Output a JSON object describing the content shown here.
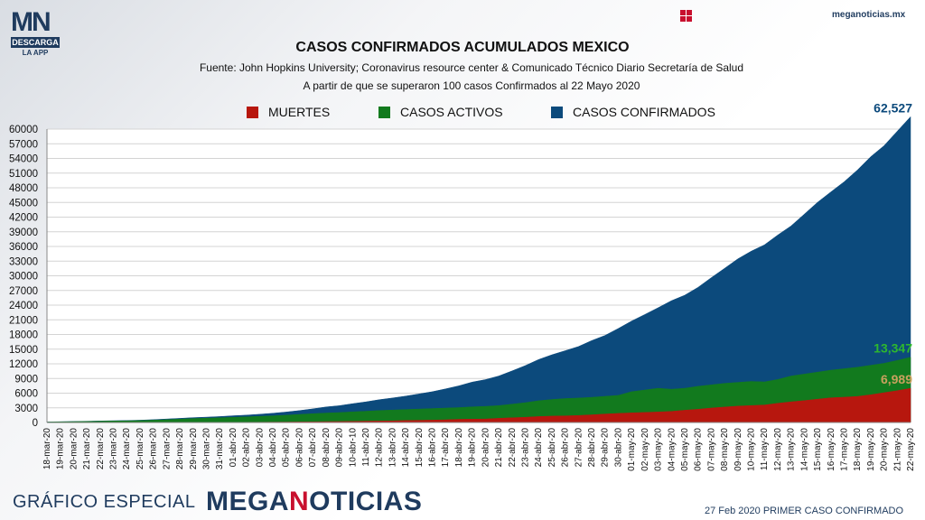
{
  "header": {
    "logo_top": "MN",
    "logo_descarga": "DESCARGA",
    "logo_app": "LA APP",
    "site_url": "meganoticias.mx",
    "icon": "grid-icon"
  },
  "footer": {
    "left": "GRÁFICO ESPECIAL",
    "brand_a": "MEGA",
    "brand_n": "N",
    "brand_b": "OTICIAS",
    "right": "27 Feb 2020 PRIMER CASO CONFIRMADO"
  },
  "chart_data": {
    "type": "area",
    "title": "CASOS CONFIRMADOS ACUMULADOS MEXICO",
    "subtitles": [
      "Fuente: John Hopkins University; Coronavirus resource center & Comunicado Técnico Diario Secretaría de Salud",
      "A partir de que se superaron 100 casos Confirmados al 22 Mayo 2020"
    ],
    "ylim": [
      0,
      60000
    ],
    "yticks": [
      0,
      3000,
      6000,
      9000,
      12000,
      15000,
      18000,
      21000,
      24000,
      27000,
      30000,
      33000,
      36000,
      39000,
      42000,
      45000,
      48000,
      51000,
      54000,
      57000,
      60000
    ],
    "grid": true,
    "legend_position": "top",
    "x": [
      "18-mar-20",
      "19-mar-20",
      "20-mar-20",
      "21-mar-20",
      "22-mar-20",
      "23-mar-20",
      "24-mar-20",
      "25-mar-20",
      "26-mar-20",
      "27-mar-20",
      "28-mar-20",
      "29-mar-20",
      "30-mar-20",
      "31-mar-20",
      "01-abr-20",
      "02-abr-20",
      "03-abr-20",
      "04-abr-20",
      "05-abr-20",
      "06-abr-20",
      "07-abr-20",
      "08-abr-20",
      "09-abr-20",
      "10-abr-10",
      "11-abr-20",
      "12-abr-20",
      "13-abr-20",
      "14-abr-20",
      "15-abr-20",
      "16-abr-20",
      "17-abr-20",
      "18-abr-20",
      "19-abr-20",
      "20-abr-20",
      "21-abr-20",
      "22-abr-20",
      "23-abr-20",
      "24-abr-20",
      "25-abr-20",
      "26-abr-20",
      "27-abr-20",
      "28-abr-20",
      "29-abr-20",
      "30-abr-20",
      "01-may-20",
      "02-may-20",
      "03-may-20",
      "04-may-20",
      "05-may-20",
      "06-may-20",
      "07-may-20",
      "08-may-20",
      "09-may-20",
      "10-may-20",
      "11-may-20",
      "12-may-20",
      "13-may-20",
      "14-may-20",
      "15-may-20",
      "16-may-20",
      "17-may-20",
      "18-may-20",
      "19-may-20",
      "20-may-20",
      "21-may-20",
      "22-may-20"
    ],
    "series": [
      {
        "name": "CASOS CONFIRMADOS",
        "color": "#0c4a7c",
        "end_label": "62,527",
        "end_label_color": "#0c4a7c",
        "values": [
          118,
          164,
          203,
          251,
          316,
          367,
          405,
          475,
          585,
          717,
          848,
          993,
          1094,
          1215,
          1378,
          1510,
          1688,
          1890,
          2143,
          2439,
          2785,
          3181,
          3441,
          3844,
          4219,
          4661,
          5014,
          5399,
          5847,
          6297,
          6875,
          7497,
          8261,
          8772,
          9501,
          10544,
          11633,
          12872,
          13842,
          14677,
          15529,
          16752,
          17799,
          19224,
          20739,
          22088,
          23471,
          24905,
          26025,
          27634,
          29616,
          31522,
          33460,
          35022,
          36327,
          38324,
          40186,
          42595,
          45032,
          47144,
          49219,
          51633,
          54346,
          56594,
          59567,
          62527
        ]
      },
      {
        "name": "CASOS ACTIVOS",
        "color": "#127a1e",
        "end_label": "13,347",
        "end_label_color": "#2eb82e",
        "values": [
          100,
          140,
          175,
          215,
          270,
          310,
          340,
          395,
          480,
          580,
          690,
          810,
          880,
          960,
          1060,
          1150,
          1260,
          1360,
          1500,
          1650,
          1800,
          1930,
          2030,
          2180,
          2300,
          2450,
          2550,
          2650,
          2750,
          2850,
          2950,
          3050,
          3200,
          3300,
          3450,
          3750,
          4050,
          4450,
          4700,
          4900,
          5000,
          5150,
          5350,
          5550,
          6300,
          6650,
          7000,
          6800,
          7000,
          7400,
          7700,
          8000,
          8200,
          8400,
          8300,
          8800,
          9500,
          9900,
          10300,
          10700,
          11000,
          11300,
          11700,
          12100,
          12700,
          13347
        ]
      },
      {
        "name": "MUERTES",
        "color": "#b7170e",
        "end_label": "6,989",
        "end_label_color": "#c9a15e",
        "values": [
          1,
          2,
          2,
          2,
          2,
          4,
          5,
          6,
          8,
          12,
          16,
          20,
          28,
          29,
          37,
          50,
          60,
          79,
          94,
          125,
          141,
          174,
          194,
          233,
          273,
          296,
          332,
          406,
          449,
          486,
          546,
          650,
          686,
          712,
          857,
          970,
          1069,
          1221,
          1305,
          1351,
          1434,
          1569,
          1732,
          1859,
          1972,
          2061,
          2154,
          2271,
          2507,
          2704,
          2961,
          3160,
          3353,
          3465,
          3573,
          3926,
          4220,
          4477,
          4767,
          5045,
          5177,
          5332,
          5666,
          6090,
          6510,
          6989
        ]
      }
    ]
  }
}
